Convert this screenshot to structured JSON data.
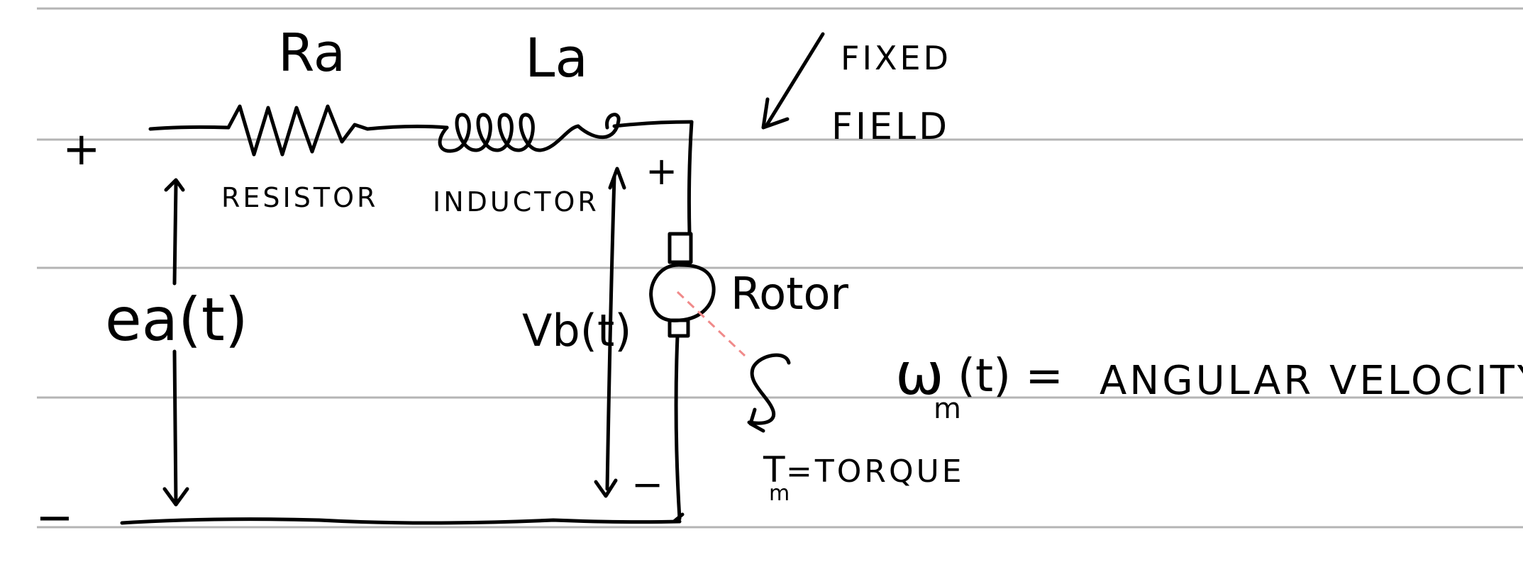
{
  "colors": {
    "ink": "#000000",
    "rule": "#b4b4b4",
    "dashed_line": "#f08a8a",
    "paper": "#ffffff"
  },
  "labels": {
    "resistor_symbol": "Ra",
    "inductor_symbol": "La",
    "resistor_name": "RESISTOR",
    "inductor_name": "INDUCTOR",
    "fixed_field_line1": "FIXED",
    "fixed_field_line2": "FIELD",
    "input_voltage": "ea(t)",
    "back_emf": "Vb(t)",
    "rotor": "Rotor",
    "angular_velocity_symbol": "ω",
    "angular_velocity_subscript": "m",
    "angular_velocity_arg": "(t) = ",
    "angular_velocity_text": "ANGULAR VELOCITY",
    "torque_symbol": "T",
    "torque_subscript": "m",
    "torque_text": "=TORQUE",
    "plus_left": "+",
    "minus_left": "−",
    "plus_right": "+",
    "minus_right": "−"
  }
}
